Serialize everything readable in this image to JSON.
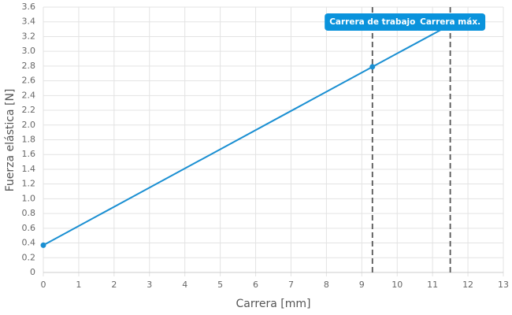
{
  "chart_data": {
    "type": "line",
    "x_label": "Carrera [mm]",
    "y_label": "Fuerza elástica [N]",
    "x": [
      0,
      9.3,
      11.5
    ],
    "series": [
      {
        "color": "#1a8fd2",
        "values": [
          0.37,
          2.79,
          3.36
        ]
      }
    ],
    "xlim": [
      0,
      13
    ],
    "xticks": [
      0,
      1,
      2,
      3,
      4,
      5,
      6,
      7,
      8,
      9,
      10,
      11,
      12,
      13
    ],
    "ylim": [
      0,
      3.6
    ],
    "yticks": [
      0,
      0.2,
      0.4,
      0.6,
      0.8,
      {
        "value": 1,
        "label": "1.0"
      },
      1.2,
      1.4,
      1.6,
      1.8,
      {
        "value": 2,
        "label": "2.0"
      },
      2.2,
      2.4,
      2.6,
      2.8,
      {
        "value": 3,
        "label": "3.0"
      },
      3.2,
      3.4,
      3.6
    ],
    "grid": true,
    "annotations": [
      {
        "x": 9.3,
        "label": "Carrera de trabajo",
        "color": "#0a93dc"
      },
      {
        "x": 11.5,
        "label": "Carrera máx.",
        "color": "#0a93dc"
      }
    ]
  }
}
